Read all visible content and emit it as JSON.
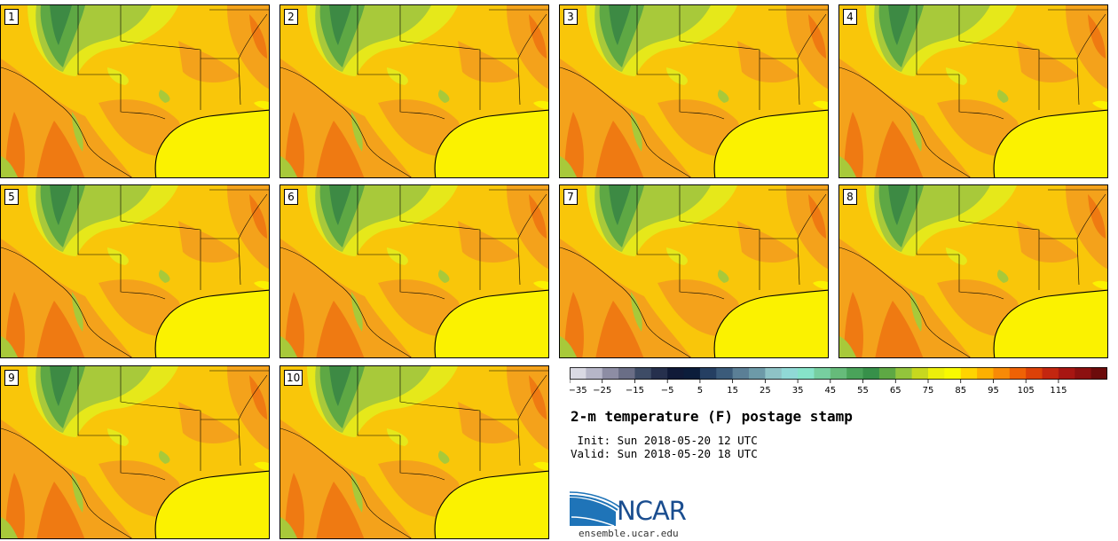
{
  "panels": [
    {
      "label": "1"
    },
    {
      "label": "2"
    },
    {
      "label": "3"
    },
    {
      "label": "4"
    },
    {
      "label": "5"
    },
    {
      "label": "6"
    },
    {
      "label": "7"
    },
    {
      "label": "8"
    },
    {
      "label": "9"
    },
    {
      "label": "10"
    }
  ],
  "colorbar": {
    "ticks": [
      "−35",
      "−25",
      "−15",
      "−5",
      "5",
      "15",
      "25",
      "35",
      "45",
      "55",
      "65",
      "75",
      "85",
      "95",
      "105",
      "115"
    ],
    "colors": [
      "#d9d9e3",
      "#b6b6c8",
      "#8d8da4",
      "#6a6e86",
      "#3e4c66",
      "#26304d",
      "#101a38",
      "#0c1d3b",
      "#253f62",
      "#3b5b7a",
      "#5b7f96",
      "#6d9aa8",
      "#8ec3c6",
      "#90d9d6",
      "#86e3c9",
      "#77cfa0",
      "#66bb7a",
      "#4aa35a",
      "#37904a",
      "#5ea844",
      "#93c43c",
      "#c7d81f",
      "#ecef0b",
      "#f8fa00",
      "#ffd400",
      "#fdb000",
      "#f88a06",
      "#ef6205",
      "#dc4108",
      "#c3260f",
      "#a71612",
      "#8c1010",
      "#6c0b0b"
    ]
  },
  "title": "2-m temperature (F) postage stamp",
  "init": " Init: Sun 2018-05-20 12 UTC",
  "valid": "Valid: Sun 2018-05-20 18 UTC",
  "logo": {
    "text": "NCAR",
    "website": "ensemble.ucar.edu"
  },
  "colors": {
    "gulf": "#fbf200",
    "land_warm": "#f9c60a",
    "land_hot": "#f4a21b",
    "land_hottest": "#ef7a12",
    "cool_green": "#a8c93a",
    "mid_green": "#5ea844",
    "dark_green": "#3d8a44",
    "yellow_green": "#e6e81a"
  }
}
